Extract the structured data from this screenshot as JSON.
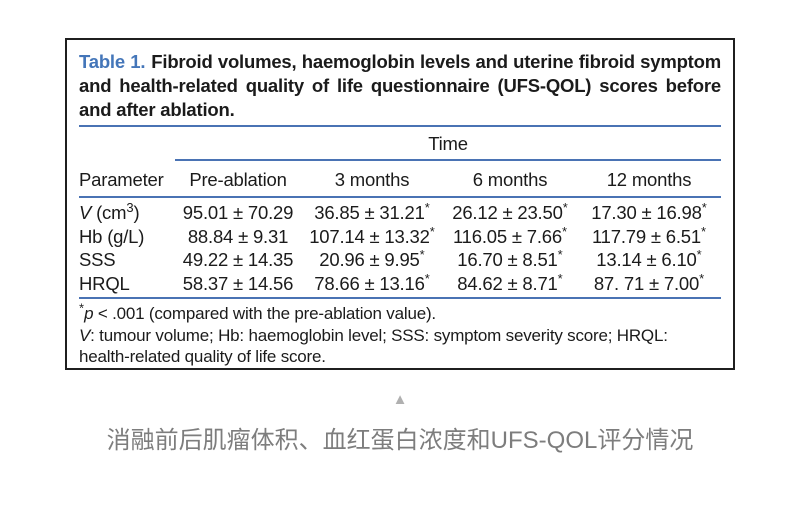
{
  "colors": {
    "accent_blue_text": "#4476b9",
    "rule_blue": "#4a73b4",
    "body_text": "#1b1b1b",
    "caption_gray": "#7d7d7d",
    "triangle_gray": "#b0b0b0",
    "card_border": "#1f1f1f"
  },
  "table": {
    "title_label": "Table 1.",
    "title_text": "Fibroid volumes, haemoglobin levels and uterine fibroid symptom and health-related quality of life questionnaire (UFS-QOL) scores before and after ablation.",
    "time_header": "Time",
    "columns": [
      "Parameter",
      "Pre-ablation",
      "3 months",
      "6 months",
      "12 months"
    ],
    "rows": [
      {
        "param": {
          "italic": "V",
          "text": " (cm",
          "sup": "3",
          "tail": ")"
        },
        "cells": [
          {
            "text": "95.01 ± 70.29",
            "star": ""
          },
          {
            "text": "36.85 ± 31.21",
            "star": "*"
          },
          {
            "text": "26.12 ± 23.50",
            "star": "*"
          },
          {
            "text": "17.30 ± 16.98",
            "star": "*"
          }
        ]
      },
      {
        "param": {
          "italic": "",
          "text": "Hb (g/L)",
          "sup": "",
          "tail": ""
        },
        "cells": [
          {
            "text": "88.84 ± 9.31",
            "star": ""
          },
          {
            "text": "107.14 ± 13.32",
            "star": "*"
          },
          {
            "text": "116.05 ± 7.66",
            "star": "*"
          },
          {
            "text": "117.79 ± 6.51",
            "star": "*"
          }
        ]
      },
      {
        "param": {
          "italic": "",
          "text": "SSS",
          "sup": "",
          "tail": ""
        },
        "cells": [
          {
            "text": "49.22 ± 14.35",
            "star": ""
          },
          {
            "text": "20.96 ± 9.95",
            "star": "*"
          },
          {
            "text": "16.70 ± 8.51",
            "star": "*"
          },
          {
            "text": "13.14 ± 6.10",
            "star": "*"
          }
        ]
      },
      {
        "param": {
          "italic": "",
          "text": "HRQL",
          "sup": "",
          "tail": ""
        },
        "cells": [
          {
            "text": "58.37 ± 14.56",
            "star": ""
          },
          {
            "text": "78.66 ± 13.16",
            "star": "*"
          },
          {
            "text": "84.62 ± 8.71",
            "star": "*"
          },
          {
            "text": "87. 71 ± 7.00",
            "star": "*"
          }
        ]
      }
    ],
    "footnote1": {
      "star": "*",
      "p": "p",
      "rest": " < .001 (compared with the pre-ablation value)."
    },
    "footnote2": {
      "italic": "V",
      "rest": ": tumour volume; Hb: haemoglobin level; SSS: symptom severity score; HRQL: health-related quality of life score."
    }
  },
  "caption": {
    "triangle_icon": "▲",
    "text": "消融前后肌瘤体积、血红蛋白浓度和UFS-QOL评分情况"
  },
  "chart_data": {
    "type": "table",
    "title": "Table 1. Fibroid volumes, haemoglobin levels and uterine fibroid symptom and health-related quality of life questionnaire (UFS-QOL) scores before and after ablation.",
    "columns": [
      "Parameter",
      "Pre-ablation",
      "3 months",
      "6 months",
      "12 months"
    ],
    "rows": [
      [
        "V (cm3)",
        "95.01 ± 70.29",
        "36.85 ± 31.21*",
        "26.12 ± 23.50*",
        "17.30 ± 16.98*"
      ],
      [
        "Hb (g/L)",
        "88.84 ± 9.31",
        "107.14 ± 13.32*",
        "116.05 ± 7.66*",
        "117.79 ± 6.51*"
      ],
      [
        "SSS",
        "49.22 ± 14.35",
        "20.96 ± 9.95*",
        "16.70 ± 8.51*",
        "13.14 ± 6.10*"
      ],
      [
        "HRQL",
        "58.37 ± 14.56",
        "78.66 ± 13.16*",
        "84.62 ± 8.71*",
        "87. 71 ± 7.00*"
      ]
    ],
    "footnotes": [
      "*p < .001 (compared with the pre-ablation value).",
      "V: tumour volume; Hb: haemoglobin level; SSS: symptom severity score; HRQL: health-related quality of life score."
    ]
  }
}
